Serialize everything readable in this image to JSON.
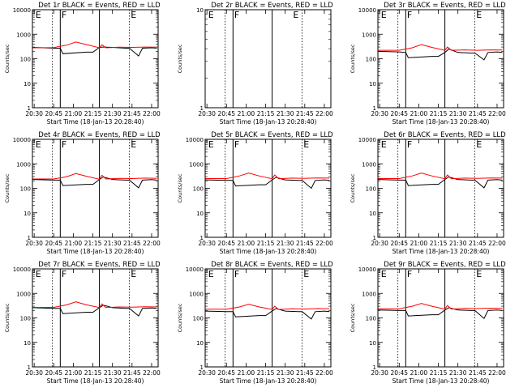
{
  "chart_data": [
    {
      "type": "line",
      "detector": "1r",
      "title": "Det 1r BLACK = Events, RED = LLD",
      "xlabel": "Start Time (18-Jan-13 20:28:40)",
      "ylabel": "Counts/sec",
      "yscale": "log",
      "ylim": [
        1,
        10000
      ],
      "y_ticks": [
        "1",
        "10",
        "100",
        "1000",
        "10000"
      ],
      "x_ticks": [
        "20:30",
        "20:45",
        "21:00",
        "21:15",
        "21:30",
        "21:45",
        "22:00"
      ],
      "xlim": [
        "20:28:40",
        "22:05"
      ],
      "vlines_dotted": [
        "20:44",
        "21:43"
      ],
      "vlines_solid": [
        "20:50",
        "21:20"
      ],
      "letters": [
        {
          "text": "E",
          "at": "20:31"
        },
        {
          "text": "F",
          "at": "20:51"
        },
        {
          "text": "E",
          "at": "21:44"
        }
      ],
      "series": [
        {
          "role": "events",
          "color": "#000000",
          "x": [
            "20:29",
            "20:45",
            "20:50",
            "20:52",
            "21:10",
            "21:15",
            "21:20",
            "21:23",
            "21:30",
            "21:40",
            "21:43",
            "21:50",
            "21:53",
            "22:00",
            "22:04"
          ],
          "y": [
            290,
            270,
            270,
            160,
            185,
            185,
            290,
            300,
            290,
            270,
            270,
            130,
            270,
            280,
            270
          ]
        },
        {
          "role": "lld",
          "color": "#ff0000",
          "x": [
            "20:29",
            "20:45",
            "20:55",
            "21:02",
            "21:10",
            "21:20",
            "21:22",
            "21:25",
            "21:35",
            "21:45",
            "21:55",
            "22:04"
          ],
          "y": [
            280,
            285,
            360,
            480,
            380,
            280,
            370,
            280,
            295,
            290,
            300,
            295
          ]
        }
      ]
    },
    {
      "type": "line",
      "detector": "2r",
      "title": "Det 2r BLACK = Events, RED = LLD",
      "xlabel": "Start Time (18-Jan-13 20:28:40)",
      "ylabel": "Counts/sec",
      "yscale": "log",
      "ylim": [
        1,
        10
      ],
      "y_ticks": [
        "1",
        "10"
      ],
      "x_ticks": [
        "20:30",
        "20:45",
        "21:00",
        "21:15",
        "21:30",
        "21:45",
        "22:00"
      ],
      "xlim": [
        "20:28:40",
        "22:05"
      ],
      "vlines_dotted": [
        "20:44",
        "21:43"
      ],
      "vlines_solid": [
        "20:50",
        "21:20"
      ],
      "letters": [
        {
          "text": "E",
          "at": "20:31"
        },
        {
          "text": "F",
          "at": "20:51"
        },
        {
          "text": "E",
          "at": "21:36"
        }
      ],
      "series": []
    },
    {
      "type": "line",
      "detector": "3r",
      "title": "Det 3r BLACK = Events, RED = LLD",
      "xlabel": "Start Time (18-Jan-13 20:28:40)",
      "ylabel": "Counts/sec",
      "yscale": "log",
      "ylim": [
        1,
        10000
      ],
      "y_ticks": [
        "1",
        "10",
        "100",
        "1000",
        "10000"
      ],
      "x_ticks": [
        "20:30",
        "20:45",
        "21:00",
        "21:15",
        "21:30",
        "21:45",
        "22:00"
      ],
      "xlim": [
        "20:28:40",
        "22:05"
      ],
      "vlines_dotted": [
        "20:44",
        "21:43"
      ],
      "vlines_solid": [
        "20:50",
        "21:20"
      ],
      "letters": [
        {
          "text": "E",
          "at": "20:31"
        },
        {
          "text": "F",
          "at": "20:51"
        },
        {
          "text": "E",
          "at": "21:44"
        }
      ],
      "series": [
        {
          "role": "events",
          "color": "#000000",
          "x": [
            "20:29",
            "20:45",
            "20:50",
            "20:52",
            "21:10",
            "21:15",
            "21:20",
            "21:23",
            "21:30",
            "21:40",
            "21:43",
            "21:50",
            "21:53",
            "22:00",
            "22:04"
          ],
          "y": [
            200,
            190,
            180,
            110,
            125,
            125,
            180,
            250,
            180,
            170,
            170,
            90,
            180,
            190,
            180
          ]
        },
        {
          "role": "lld",
          "color": "#ff0000",
          "x": [
            "20:29",
            "20:45",
            "20:55",
            "21:02",
            "21:10",
            "21:20",
            "21:22",
            "21:25",
            "21:35",
            "21:45",
            "21:55",
            "22:04"
          ],
          "y": [
            220,
            220,
            280,
            380,
            290,
            220,
            300,
            220,
            230,
            220,
            230,
            225
          ]
        }
      ]
    },
    {
      "type": "line",
      "detector": "4r",
      "title": "Det 4r BLACK = Events, RED = LLD",
      "xlabel": "Start Time (18-Jan-13 20:28:40)",
      "ylabel": "Counts/sec",
      "yscale": "log",
      "ylim": [
        1,
        10000
      ],
      "y_ticks": [
        "1",
        "10",
        "100",
        "1000",
        "10000"
      ],
      "x_ticks": [
        "20:30",
        "20:45",
        "21:00",
        "21:15",
        "21:30",
        "21:45",
        "22:00"
      ],
      "xlim": [
        "20:28:40",
        "22:05"
      ],
      "vlines_dotted": [
        "20:44",
        "21:43"
      ],
      "vlines_solid": [
        "20:50",
        "21:20"
      ],
      "letters": [
        {
          "text": "E",
          "at": "20:31"
        },
        {
          "text": "F",
          "at": "20:51"
        },
        {
          "text": "E",
          "at": "21:44"
        }
      ],
      "series": [
        {
          "role": "events",
          "color": "#000000",
          "x": [
            "20:29",
            "20:45",
            "20:50",
            "20:52",
            "21:10",
            "21:15",
            "21:20",
            "21:23",
            "21:30",
            "21:40",
            "21:43",
            "21:50",
            "21:53",
            "22:00",
            "22:04"
          ],
          "y": [
            230,
            215,
            215,
            130,
            145,
            145,
            230,
            290,
            230,
            215,
            215,
            105,
            215,
            225,
            215
          ]
        },
        {
          "role": "lld",
          "color": "#ff0000",
          "x": [
            "20:29",
            "20:45",
            "20:55",
            "21:02",
            "21:10",
            "21:20",
            "21:22",
            "21:25",
            "21:35",
            "21:45",
            "21:55",
            "22:04"
          ],
          "y": [
            240,
            240,
            300,
            400,
            310,
            235,
            340,
            240,
            255,
            250,
            260,
            255
          ]
        }
      ]
    },
    {
      "type": "line",
      "detector": "5r",
      "title": "Det 5r BLACK = Events, RED = LLD",
      "xlabel": "Start Time (18-Jan-13 20:28:40)",
      "ylabel": "Counts/sec",
      "yscale": "log",
      "ylim": [
        1,
        10000
      ],
      "y_ticks": [
        "1",
        "10",
        "100",
        "1000",
        "10000"
      ],
      "x_ticks": [
        "20:30",
        "20:45",
        "21:00",
        "21:15",
        "21:30",
        "21:45",
        "22:00"
      ],
      "xlim": [
        "20:28:40",
        "22:05"
      ],
      "vlines_dotted": [
        "20:44",
        "21:43"
      ],
      "vlines_solid": [
        "20:50",
        "21:20"
      ],
      "letters": [
        {
          "text": "E",
          "at": "20:31"
        },
        {
          "text": "F",
          "at": "20:51"
        },
        {
          "text": "E",
          "at": "21:44"
        }
      ],
      "series": [
        {
          "role": "events",
          "color": "#000000",
          "x": [
            "20:29",
            "20:45",
            "20:50",
            "20:52",
            "21:10",
            "21:15",
            "21:20",
            "21:23",
            "21:30",
            "21:40",
            "21:43",
            "21:50",
            "21:53",
            "22:00",
            "22:04"
          ],
          "y": [
            220,
            210,
            210,
            125,
            140,
            140,
            220,
            280,
            220,
            210,
            210,
            100,
            210,
            220,
            210
          ]
        },
        {
          "role": "lld",
          "color": "#ff0000",
          "x": [
            "20:29",
            "20:45",
            "20:55",
            "21:02",
            "21:10",
            "21:20",
            "21:22",
            "21:25",
            "21:35",
            "21:45",
            "21:55",
            "22:04"
          ],
          "y": [
            250,
            250,
            320,
            420,
            320,
            245,
            350,
            245,
            260,
            255,
            265,
            260
          ]
        }
      ]
    },
    {
      "type": "line",
      "detector": "6r",
      "title": "Det 6r BLACK = Events, RED = LLD",
      "xlabel": "Start Time (18-Jan-13 20:28:40)",
      "ylabel": "Counts/sec",
      "yscale": "log",
      "ylim": [
        1,
        10000
      ],
      "y_ticks": [
        "1",
        "10",
        "100",
        "1000",
        "10000"
      ],
      "x_ticks": [
        "20:30",
        "20:45",
        "21:00",
        "21:15",
        "21:30",
        "21:45",
        "22:00"
      ],
      "xlim": [
        "20:28:40",
        "22:05"
      ],
      "vlines_dotted": [
        "20:44",
        "21:43"
      ],
      "vlines_solid": [
        "20:50",
        "21:20"
      ],
      "letters": [
        {
          "text": "E",
          "at": "20:31"
        },
        {
          "text": "F",
          "at": "20:51"
        },
        {
          "text": "E",
          "at": "21:44"
        }
      ],
      "series": [
        {
          "role": "events",
          "color": "#000000",
          "x": [
            "20:29",
            "20:45",
            "20:50",
            "20:52",
            "21:10",
            "21:15",
            "21:20",
            "21:23",
            "21:30",
            "21:40",
            "21:43",
            "21:50",
            "21:53",
            "22:00",
            "22:04"
          ],
          "y": [
            230,
            215,
            215,
            130,
            145,
            145,
            230,
            290,
            230,
            215,
            215,
            105,
            215,
            225,
            215
          ]
        },
        {
          "role": "lld",
          "color": "#ff0000",
          "x": [
            "20:29",
            "20:45",
            "20:55",
            "21:02",
            "21:10",
            "21:20",
            "21:22",
            "21:25",
            "21:35",
            "21:45",
            "21:55",
            "22:04"
          ],
          "y": [
            250,
            250,
            320,
            420,
            320,
            245,
            350,
            245,
            260,
            255,
            265,
            260
          ]
        }
      ]
    },
    {
      "type": "line",
      "detector": "7r",
      "title": "Det 7r BLACK = Events, RED = LLD",
      "xlabel": "Start Time (18-Jan-13 20:28:40)",
      "ylabel": "Counts/sec",
      "yscale": "log",
      "ylim": [
        1,
        10000
      ],
      "y_ticks": [
        "1",
        "10",
        "100",
        "1000",
        "10000"
      ],
      "x_ticks": [
        "20:30",
        "20:45",
        "21:00",
        "21:15",
        "21:30",
        "21:45",
        "22:00"
      ],
      "xlim": [
        "20:28:40",
        "22:05"
      ],
      "vlines_dotted": [
        "20:44",
        "21:43"
      ],
      "vlines_solid": [
        "20:50",
        "21:20"
      ],
      "letters": [
        {
          "text": "E",
          "at": "20:31"
        },
        {
          "text": "F",
          "at": "20:51"
        },
        {
          "text": "E",
          "at": "21:44"
        }
      ],
      "series": [
        {
          "role": "events",
          "color": "#000000",
          "x": [
            "20:29",
            "20:45",
            "20:50",
            "20:52",
            "21:10",
            "21:15",
            "21:20",
            "21:23",
            "21:30",
            "21:40",
            "21:43",
            "21:50",
            "21:53",
            "22:00",
            "22:04"
          ],
          "y": [
            260,
            245,
            245,
            150,
            170,
            170,
            260,
            330,
            260,
            245,
            245,
            120,
            245,
            255,
            245
          ]
        },
        {
          "role": "lld",
          "color": "#ff0000",
          "x": [
            "20:29",
            "20:45",
            "20:55",
            "21:02",
            "21:10",
            "21:20",
            "21:22",
            "21:25",
            "21:35",
            "21:45",
            "21:55",
            "22:04"
          ],
          "y": [
            270,
            270,
            340,
            450,
            340,
            265,
            370,
            265,
            280,
            275,
            285,
            280
          ]
        }
      ]
    },
    {
      "type": "line",
      "detector": "8r",
      "title": "Det 8r BLACK = Events, RED = LLD",
      "xlabel": "Start Time (18-Jan-13 20:28:40)",
      "ylabel": "Counts/sec",
      "yscale": "log",
      "ylim": [
        1,
        10000
      ],
      "y_ticks": [
        "1",
        "10",
        "100",
        "1000",
        "10000"
      ],
      "x_ticks": [
        "20:30",
        "20:45",
        "21:00",
        "21:15",
        "21:30",
        "21:45",
        "22:00"
      ],
      "xlim": [
        "20:28:40",
        "22:05"
      ],
      "vlines_dotted": [
        "20:44",
        "21:43"
      ],
      "vlines_solid": [
        "20:50",
        "21:20"
      ],
      "letters": [
        {
          "text": "E",
          "at": "20:31"
        },
        {
          "text": "F",
          "at": "20:51"
        },
        {
          "text": "E",
          "at": "21:44"
        }
      ],
      "series": [
        {
          "role": "events",
          "color": "#000000",
          "x": [
            "20:29",
            "20:45",
            "20:50",
            "20:52",
            "21:10",
            "21:15",
            "21:20",
            "21:23",
            "21:30",
            "21:40",
            "21:43",
            "21:50",
            "21:53",
            "22:00",
            "22:04"
          ],
          "y": [
            190,
            180,
            180,
            110,
            125,
            125,
            190,
            240,
            190,
            180,
            180,
            90,
            180,
            190,
            180
          ]
        },
        {
          "role": "lld",
          "color": "#ff0000",
          "x": [
            "20:29",
            "20:45",
            "20:55",
            "21:02",
            "21:10",
            "21:20",
            "21:22",
            "21:25",
            "21:35",
            "21:45",
            "21:55",
            "22:04"
          ],
          "y": [
            225,
            225,
            280,
            360,
            280,
            220,
            300,
            220,
            235,
            230,
            240,
            235
          ]
        }
      ]
    },
    {
      "type": "line",
      "detector": "9r",
      "title": "Det 9r BLACK = Events, RED = LLD",
      "xlabel": "Start Time (18-Jan-13 20:28:40)",
      "ylabel": "Counts/sec",
      "yscale": "log",
      "ylim": [
        1,
        10000
      ],
      "y_ticks": [
        "1",
        "10",
        "100",
        "1000",
        "10000"
      ],
      "x_ticks": [
        "20:30",
        "20:45",
        "21:00",
        "21:15",
        "21:30",
        "21:45",
        "22:00"
      ],
      "xlim": [
        "20:28:40",
        "22:05"
      ],
      "vlines_dotted": [
        "20:44",
        "21:43"
      ],
      "vlines_solid": [
        "20:50",
        "21:20"
      ],
      "letters": [
        {
          "text": "E",
          "at": "20:31"
        },
        {
          "text": "F",
          "at": "20:51"
        },
        {
          "text": "E",
          "at": "21:44"
        }
      ],
      "series": [
        {
          "role": "events",
          "color": "#000000",
          "x": [
            "20:29",
            "20:45",
            "20:50",
            "20:52",
            "21:10",
            "21:15",
            "21:20",
            "21:23",
            "21:30",
            "21:40",
            "21:43",
            "21:50",
            "21:53",
            "22:00",
            "22:04"
          ],
          "y": [
            210,
            200,
            200,
            120,
            135,
            135,
            210,
            260,
            210,
            200,
            200,
            95,
            200,
            210,
            200
          ]
        },
        {
          "role": "lld",
          "color": "#ff0000",
          "x": [
            "20:29",
            "20:45",
            "20:55",
            "21:02",
            "21:10",
            "21:20",
            "21:22",
            "21:25",
            "21:35",
            "21:45",
            "21:55",
            "22:04"
          ],
          "y": [
            235,
            235,
            300,
            390,
            300,
            230,
            320,
            230,
            245,
            240,
            250,
            245
          ]
        }
      ]
    }
  ]
}
